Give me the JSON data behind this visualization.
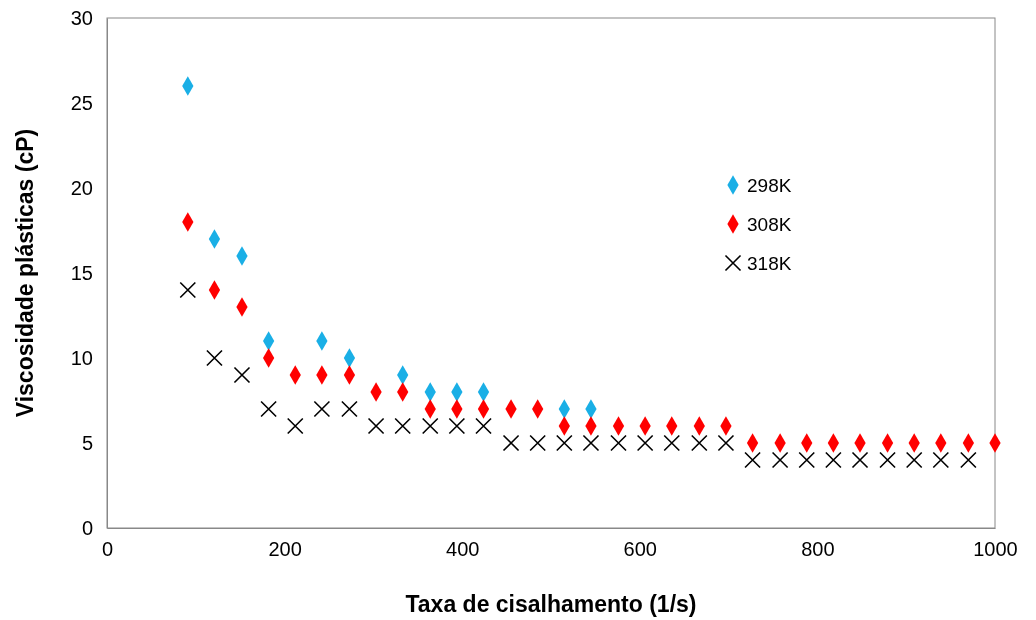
{
  "chart_data": {
    "type": "scatter",
    "xlabel": "Taxa de cisalhamento (1/s)",
    "ylabel": "Viscosidade plásticas  (cP)",
    "x": [
      91,
      121,
      152,
      182,
      212,
      242,
      273,
      303,
      333,
      364,
      394,
      424,
      455,
      485,
      515,
      545,
      576,
      606,
      636,
      667,
      697,
      727,
      758,
      788,
      818,
      848,
      879,
      909,
      939,
      970,
      1000
    ],
    "series": [
      {
        "name": "298K",
        "color": "#1aafe6",
        "marker": "diamond",
        "values": [
          26,
          17,
          16,
          11,
          null,
          11,
          10,
          null,
          9,
          8,
          8,
          8,
          null,
          null,
          7,
          7,
          null,
          null,
          null,
          null,
          null,
          null,
          null,
          null,
          null,
          null,
          null,
          null,
          null,
          null,
          null
        ]
      },
      {
        "name": "308K",
        "color": "#ff0000",
        "marker": "diamond",
        "values": [
          18,
          14,
          13,
          10,
          9,
          9,
          9,
          8,
          8,
          7,
          7,
          7,
          7,
          7,
          6,
          6,
          6,
          6,
          6,
          6,
          6,
          5,
          5,
          5,
          5,
          5,
          5,
          5,
          5,
          5,
          5
        ]
      },
      {
        "name": "318K",
        "color": "#000000",
        "marker": "cross",
        "values": [
          14,
          10,
          9,
          7,
          6,
          7,
          7,
          6,
          6,
          6,
          6,
          6,
          5,
          5,
          5,
          5,
          5,
          5,
          5,
          5,
          5,
          4,
          4,
          4,
          4,
          4,
          4,
          4,
          4,
          4,
          null
        ]
      }
    ],
    "xlim": [
      0,
      1000
    ],
    "xticks": [
      0,
      200,
      400,
      600,
      800,
      1000
    ],
    "ylim": [
      0,
      30
    ],
    "yticks": [
      0,
      5,
      10,
      15,
      20,
      25,
      30
    ],
    "grid": false,
    "legend": "right"
  }
}
